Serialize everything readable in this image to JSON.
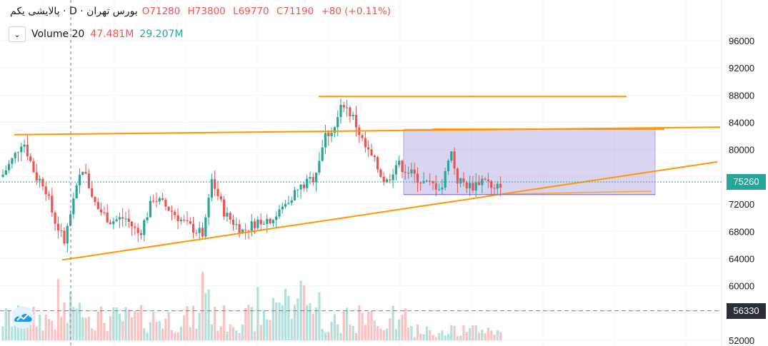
{
  "legend": {
    "symbol": "پالایشی یکم · D · بورس تهران",
    "open": "O71280",
    "high": "H73800",
    "low": "L69770",
    "close": "C71190",
    "change": "+80 (+0.11%)"
  },
  "volume_legend": {
    "collapse_icon": "chevron-down-icon",
    "name": "Volume 20",
    "value_a": "47.481M",
    "value_b": "29.207M"
  },
  "price_axis": {
    "ticks": [
      "96000",
      "92000",
      "88000",
      "84000",
      "80000",
      "76000",
      "72000",
      "68000",
      "64000",
      "60000",
      "56000",
      "52000"
    ],
    "current_price": "75260",
    "current_price_color": "#26a69a",
    "marker_price": "56330",
    "marker_color": "#2a2e39"
  },
  "colors": {
    "up": "#26a69a",
    "down": "#ef5350",
    "trendline": "#ff9800",
    "range_fill": "#9c8fd4"
  },
  "logo_icon": "tradingview-cloud-icon",
  "chart_data": {
    "type": "candlestick",
    "timeframe": "D",
    "ylim": [
      51000,
      97500
    ],
    "last_close": 71190,
    "current_price": 75260,
    "marker_price": 56330
  }
}
